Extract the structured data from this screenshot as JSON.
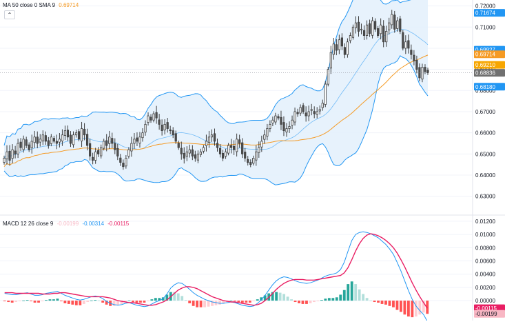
{
  "main_legend": {
    "title": "MA 50 close 0 SMA 9",
    "value": "0.69714",
    "value_color": "#f59a23",
    "collapse_icon": "chevron-up-icon"
  },
  "macd_legend": {
    "title": "MACD 12 26 close 9",
    "hist": "-0.00199",
    "macd": "-0.00314",
    "signal": "-0.00115",
    "hist_color": "#f8b7c4",
    "macd_color": "#2196f3",
    "signal_color": "#e91e63"
  },
  "price_axis": {
    "ticks": [
      "0.72000",
      "0.71000",
      "0.70000",
      "0.69000",
      "0.68000",
      "0.67000",
      "0.66000",
      "0.65000",
      "0.64000",
      "0.63000"
    ],
    "badges": [
      {
        "text": "0.71674",
        "value": 0.71674,
        "color": "#2196f3"
      },
      {
        "text": "0.69927",
        "value": 0.69927,
        "color": "#2196f3"
      },
      {
        "text": "0.69714",
        "value": 0.69714,
        "color": "#f59a23"
      },
      {
        "text": "0.69210",
        "value": 0.6921,
        "color": "#f7a600"
      },
      {
        "text": "0.68836",
        "value": 0.68836,
        "color": "#707070"
      },
      {
        "text": "0.68180",
        "value": 0.6818,
        "color": "#2196f3"
      }
    ]
  },
  "macd_axis": {
    "ticks": [
      "0.01200",
      "0.01000",
      "0.00800",
      "0.00600",
      "0.00400",
      "0.00200",
      "0.00000"
    ],
    "badges": [
      {
        "text": "-0.00115",
        "value": -0.00115,
        "color": "#e91e63"
      },
      {
        "text": "-0.00199",
        "value": -0.00199,
        "color": "#f8b7c4"
      }
    ]
  },
  "colors": {
    "up_candle": "#ffffff",
    "down_candle": "#505050",
    "candle_border": "#3c3c3c",
    "bb_line": "#2196f3",
    "bb_fill": "#e3f0fc",
    "bb_basis": "#2196f3",
    "ma_line": "#f59a23",
    "macd_line": "#2196f3",
    "signal_line": "#e91e63",
    "hist_pos_strong": "#26a69a",
    "hist_pos_weak": "#b2dfdb",
    "hist_neg_strong": "#ff5252",
    "hist_neg_weak": "#ffcdd2",
    "grid": "#f0f3fa"
  },
  "chart_data": [
    {
      "type": "candlestick",
      "overlays": [
        "Bollinger Bands",
        "MA 50 close 0 SMA 9"
      ],
      "ylim": [
        0.625,
        0.7215
      ],
      "last_close": 0.68836,
      "closes": [
        0.648,
        0.651,
        0.647,
        0.652,
        0.65,
        0.655,
        0.653,
        0.657,
        0.654,
        0.652,
        0.656,
        0.658,
        0.655,
        0.657,
        0.659,
        0.656,
        0.654,
        0.658,
        0.656,
        0.655,
        0.657,
        0.659,
        0.661,
        0.658,
        0.655,
        0.659,
        0.66,
        0.657,
        0.662,
        0.659,
        0.654,
        0.649,
        0.647,
        0.651,
        0.65,
        0.653,
        0.656,
        0.654,
        0.658,
        0.655,
        0.652,
        0.649,
        0.646,
        0.644,
        0.648,
        0.652,
        0.655,
        0.657,
        0.656,
        0.658,
        0.66,
        0.664,
        0.668,
        0.666,
        0.669,
        0.667,
        0.664,
        0.661,
        0.664,
        0.662,
        0.661,
        0.659,
        0.656,
        0.653,
        0.65,
        0.648,
        0.651,
        0.652,
        0.649,
        0.648,
        0.65,
        0.651,
        0.653,
        0.656,
        0.658,
        0.659,
        0.656,
        0.653,
        0.65,
        0.648,
        0.651,
        0.654,
        0.653,
        0.652,
        0.657,
        0.655,
        0.65,
        0.648,
        0.646,
        0.645,
        0.648,
        0.651,
        0.653,
        0.656,
        0.659,
        0.662,
        0.664,
        0.666,
        0.668,
        0.667,
        0.664,
        0.661,
        0.662,
        0.663,
        0.666,
        0.67,
        0.669,
        0.672,
        0.67,
        0.668,
        0.67,
        0.671,
        0.669,
        0.67,
        0.671,
        0.674,
        0.683,
        0.69,
        0.698,
        0.702,
        0.699,
        0.704,
        0.701,
        0.697,
        0.703,
        0.706,
        0.71,
        0.712,
        0.708,
        0.709,
        0.706,
        0.711,
        0.707,
        0.713,
        0.709,
        0.706,
        0.711,
        0.703,
        0.708,
        0.712,
        0.716,
        0.709,
        0.713,
        0.708,
        0.7,
        0.703,
        0.7,
        0.697,
        0.694,
        0.69,
        0.686,
        0.691,
        0.689,
        0.68836
      ]
    },
    {
      "type": "macd",
      "params": "12 26 close 9",
      "ylim": [
        -0.0028,
        0.0123
      ],
      "macd": [
        0.0011,
        0.001,
        0.0009,
        0.0009,
        0.001,
        0.0011,
        0.0012,
        0.001,
        0.0008,
        0.0008,
        0.0009,
        0.0011,
        0.0012,
        0.0013,
        0.0014,
        0.0011,
        0.0008,
        0.0006,
        0.0004,
        0.0002,
        0.0001,
        0.0002,
        0.0004,
        0.0006,
        0.0007,
        0.0006,
        0.0003,
        -0.0001,
        -0.0004,
        -0.0006,
        -0.0007,
        -0.0006,
        -0.0004,
        -0.0003,
        -0.0005,
        -0.0007,
        -0.0008,
        -0.0009,
        -0.0008,
        -0.0005,
        -0.0002,
        0.0,
        0.0003,
        0.001,
        0.0019,
        0.0024,
        0.0027,
        0.0026,
        0.0022,
        0.0017,
        0.0012,
        0.0008,
        0.0005,
        0.0002,
        0.0,
        -0.0002,
        -0.0003,
        -0.0004,
        -0.0004,
        -0.0003,
        -0.0002,
        -0.0003,
        -0.0005,
        -0.0007,
        -0.0008,
        -0.0009,
        -0.0008,
        -0.0004,
        0.0001,
        0.0008,
        0.0016,
        0.0024,
        0.003,
        0.0034,
        0.0036,
        0.0035,
        0.0033,
        0.003,
        0.0028,
        0.0027,
        0.0026,
        0.0027,
        0.0029,
        0.0031,
        0.0034,
        0.0037,
        0.0039,
        0.004,
        0.0042,
        0.0047,
        0.0058,
        0.0075,
        0.0091,
        0.01,
        0.0103,
        0.0104,
        0.0103,
        0.0101,
        0.0098,
        0.0095,
        0.009,
        0.0085,
        0.0078,
        0.007,
        0.0058,
        0.0045,
        0.003,
        0.0015,
        0.0002,
        -0.0008,
        -0.0015,
        -0.0021,
        -0.00314
      ],
      "signal": [
        0.0012,
        0.0012,
        0.0012,
        0.0011,
        0.0011,
        0.0011,
        0.0011,
        0.0011,
        0.0011,
        0.0011,
        0.001,
        0.001,
        0.001,
        0.0011,
        0.0011,
        0.0012,
        0.0012,
        0.0011,
        0.001,
        0.0009,
        0.0008,
        0.0007,
        0.0006,
        0.0006,
        0.0006,
        0.0006,
        0.0006,
        0.0005,
        0.0004,
        0.0002,
        0.0,
        -0.0001,
        -0.0002,
        -0.0003,
        -0.0003,
        -0.0004,
        -0.0005,
        -0.0006,
        -0.0007,
        -0.0007,
        -0.0006,
        -0.0004,
        -0.0002,
        0.0001,
        0.0006,
        0.0011,
        0.0016,
        0.0019,
        0.0021,
        0.0021,
        0.002,
        0.0018,
        0.0015,
        0.0012,
        0.0009,
        0.0006,
        0.0004,
        0.0002,
        0.0,
        -0.0001,
        -0.0002,
        -0.0002,
        -0.0003,
        -0.0004,
        -0.0005,
        -0.0006,
        -0.0007,
        -0.0006,
        -0.0004,
        0.0,
        0.0005,
        0.0011,
        0.0017,
        0.0022,
        0.0026,
        0.0029,
        0.0031,
        0.0032,
        0.0032,
        0.0032,
        0.0031,
        0.0031,
        0.0031,
        0.0032,
        0.0033,
        0.0034,
        0.0035,
        0.0036,
        0.0037,
        0.0038,
        0.0042,
        0.005,
        0.0062,
        0.0075,
        0.0086,
        0.0094,
        0.0099,
        0.0101,
        0.01,
        0.0098,
        0.0095,
        0.0091,
        0.0086,
        0.008,
        0.0072,
        0.0062,
        0.0051,
        0.0039,
        0.0027,
        0.0016,
        0.0006,
        -0.0003,
        -0.00115
      ],
      "hist_last": -0.00199
    }
  ]
}
